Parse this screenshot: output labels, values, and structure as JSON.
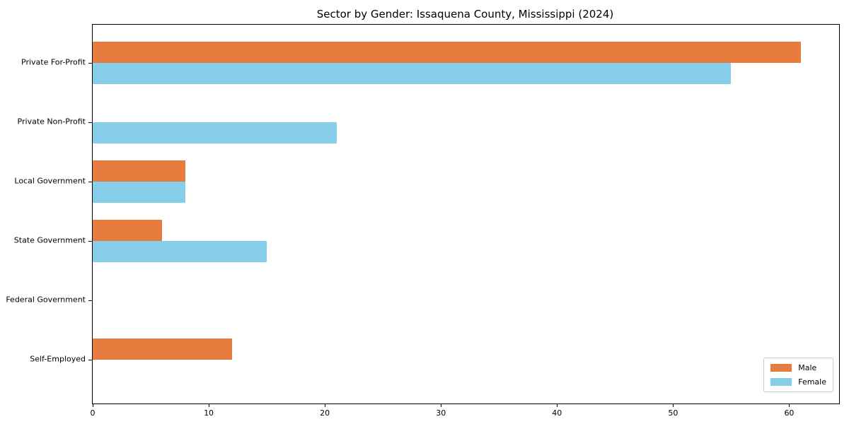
{
  "chart_data": {
    "type": "bar",
    "orientation": "horizontal",
    "title": "Sector by Gender: Issaquena County, Mississippi (2024)",
    "categories": [
      "Private For-Profit",
      "Private Non-Profit",
      "Local Government",
      "State Government",
      "Federal Government",
      "Self-Employed"
    ],
    "series": [
      {
        "name": "Male",
        "color": "#e87b3e",
        "values": [
          61,
          0,
          8,
          6,
          0,
          12
        ]
      },
      {
        "name": "Female",
        "color": "#87ceeb",
        "values": [
          55,
          21,
          8,
          15,
          0,
          0
        ]
      }
    ],
    "xlabel": "",
    "ylabel": "",
    "xlim": [
      0,
      64.3
    ],
    "xticks": [
      0,
      10,
      20,
      30,
      40,
      50,
      60
    ],
    "grid": false,
    "legend_position": "lower right",
    "frame": "full-box",
    "background_color": "#ffffff",
    "text_color": "#000000"
  }
}
